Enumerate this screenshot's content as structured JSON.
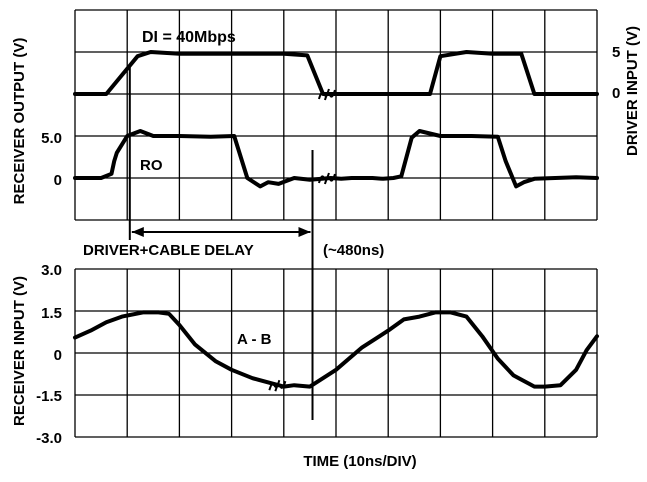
{
  "chart_data": {
    "type": "line",
    "xlabel": "TIME (10ns/DIV)",
    "x_divisions": 10,
    "upper_panel": {
      "ylabel_left": "RECEIVER OUTPUT (V)",
      "ylabel_right": "DRIVER INPUT (V)",
      "left_ticks": [
        "5.0",
        "0"
      ],
      "right_ticks": [
        "5",
        "0"
      ],
      "annotations": {
        "data_rate": "DI = 40Mbps",
        "ro_label": "RO",
        "delay_label": "DRIVER+CABLE DELAY",
        "delay_value": "(~480ns)"
      },
      "series": [
        {
          "name": "DI",
          "x": [
            0,
            0.6,
            1.2,
            1.45,
            2,
            3,
            4,
            4.45,
            4.75,
            5,
            5.4,
            5.6,
            5.9,
            6.1,
            6.8,
            7,
            7.5,
            8,
            8.55,
            8.8,
            9.1,
            9.5,
            10
          ],
          "y": [
            0,
            0,
            4.5,
            5,
            4.8,
            4.8,
            4.8,
            4.6,
            0,
            0,
            0,
            0,
            0,
            0,
            0,
            4.5,
            5,
            4.8,
            4.8,
            0,
            0,
            0,
            0
          ]
        },
        {
          "name": "RO",
          "x": [
            0,
            0.35,
            0.5,
            0.7,
            0.75,
            0.8,
            1.0,
            1.25,
            1.5,
            2,
            2.6,
            3.05,
            3.3,
            3.55,
            3.7,
            3.9,
            4.2,
            4.5,
            4.9,
            5.1,
            5.3,
            5.5,
            5.7,
            5.9,
            6.1,
            6.25,
            6.45,
            6.6,
            7,
            7.6,
            8.1,
            8.25,
            8.45,
            8.6,
            8.8,
            9.2,
            9.6,
            10
          ],
          "y": [
            0,
            0,
            0,
            0.5,
            2,
            3,
            5,
            5.6,
            5,
            5,
            4.9,
            5,
            0,
            -1,
            -0.5,
            -0.7,
            0,
            -0.2,
            0,
            -0.1,
            0,
            0,
            0,
            -0.1,
            0,
            0.2,
            4.8,
            5.6,
            5,
            5,
            4.9,
            2,
            -1,
            -0.5,
            -0.1,
            0,
            0.1,
            0
          ]
        }
      ]
    },
    "lower_panel": {
      "ylabel": "RECEIVER INPUT (V)",
      "y_ticks": [
        "3.0",
        "1.5",
        "0",
        "-1.5",
        "-3.0"
      ],
      "ylim": [
        -3.0,
        3.0
      ],
      "annotations": {
        "diff_label": "A - B"
      },
      "series": [
        {
          "name": "A - B",
          "x": [
            0,
            0.3,
            0.6,
            0.9,
            1.3,
            1.6,
            1.8,
            2.0,
            2.3,
            2.7,
            3.0,
            3.4,
            3.8,
            4.0,
            4.2,
            4.5,
            5.0,
            5.5,
            6.0,
            6.3,
            6.6,
            6.9,
            7.2,
            7.5,
            7.8,
            8.1,
            8.4,
            8.7,
            8.8,
            9.0,
            9.3,
            9.6,
            9.8,
            10
          ],
          "y": [
            0.55,
            0.8,
            1.1,
            1.3,
            1.45,
            1.45,
            1.4,
            1.0,
            0.3,
            -0.3,
            -0.6,
            -0.9,
            -1.1,
            -1.2,
            -1.15,
            -1.2,
            -0.6,
            0.2,
            0.8,
            1.2,
            1.3,
            1.45,
            1.45,
            1.3,
            0.6,
            -0.2,
            -0.8,
            -1.1,
            -1.2,
            -1.2,
            -1.15,
            -0.6,
            0.1,
            0.6
          ]
        }
      ]
    }
  }
}
